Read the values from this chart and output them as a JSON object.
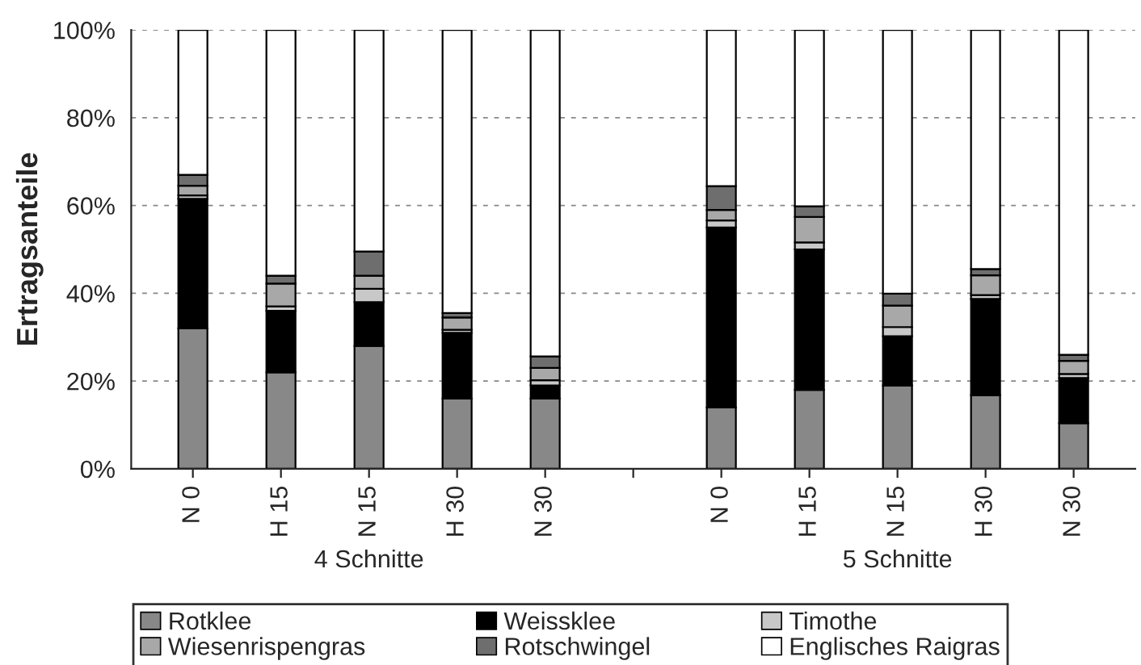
{
  "chart_data": {
    "type": "bar",
    "stacked": true,
    "ylabel": "Ertragsanteile",
    "categories": [
      "N 0",
      "H 15",
      "N 15",
      "H 30",
      "N 30",
      null,
      "N 0",
      "H 15",
      "N 15",
      "H 30",
      "N 30"
    ],
    "series": [
      {
        "name": "Rotklee",
        "color": "#888888",
        "values": [
          32,
          22,
          28,
          16,
          16,
          null,
          14,
          18,
          19,
          16.8,
          10.4
        ]
      },
      {
        "name": "Weissklee",
        "color": "#000000",
        "values": [
          29.5,
          14,
          10,
          15,
          3,
          null,
          41,
          32,
          11.2,
          21.9,
          10.3
        ]
      },
      {
        "name": "Timothe",
        "color": "#c8c8c8",
        "values": [
          0.8,
          1,
          3,
          0.7,
          1.2,
          null,
          1.6,
          1.6,
          2.1,
          0.9,
          0.9
        ]
      },
      {
        "name": "Wiesenrispengras",
        "color": "#a8a8a8",
        "values": [
          2.2,
          5.2,
          3,
          2.8,
          2.8,
          null,
          2.4,
          5.8,
          4.9,
          4.5,
          3
        ]
      },
      {
        "name": "Rotschwingel",
        "color": "#6e6e6e",
        "values": [
          2.5,
          1.8,
          5.5,
          1,
          2.6,
          null,
          5.4,
          2.4,
          2.7,
          1.4,
          1.4
        ]
      },
      {
        "name": "Englisches Raigras",
        "color": "#ffffff",
        "values": [
          33,
          56,
          50.5,
          64.5,
          74.4,
          null,
          35.6,
          40.2,
          60.1,
          54.5,
          74
        ]
      }
    ],
    "ylim": [
      0,
      100
    ],
    "yticks": [
      {
        "value": 0,
        "label": "0%"
      },
      {
        "value": 20,
        "label": "20%"
      },
      {
        "value": 40,
        "label": "40%"
      },
      {
        "value": 60,
        "label": "60%"
      },
      {
        "value": 80,
        "label": "80%"
      },
      {
        "value": 100,
        "label": "100%"
      }
    ],
    "grid": "y",
    "legend": "bottom",
    "annotations": [
      "4 Schnitte",
      "5 Schnitte"
    ]
  }
}
